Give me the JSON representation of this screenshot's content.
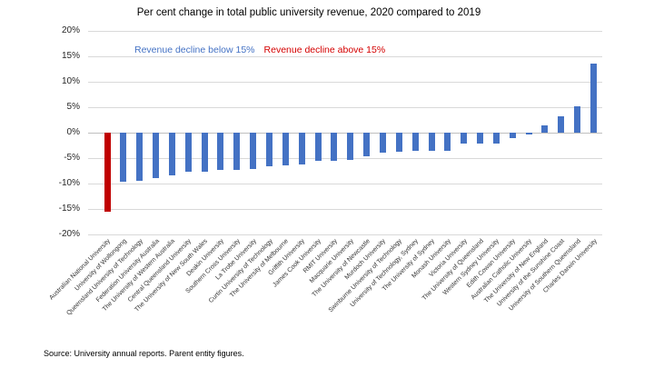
{
  "title": "Per cent change in total public university revenue, 2020 compared to 2019",
  "legend": {
    "below_label": "Revenue decline below 15%",
    "above_label": "Revenue decline above 15%"
  },
  "source": "Source: University annual reports. Parent entity figures.",
  "colors": {
    "bar_blue": "#4472C4",
    "bar_red": "#C00000",
    "legend_blue": "#4472C4",
    "legend_red": "#D40000",
    "gridline": "#D9D9D9",
    "zero_line": "#BFBFBF",
    "text": "#000000"
  },
  "chart_data": {
    "type": "bar",
    "title": "Per cent change in total public university revenue, 2020 compared to 2019",
    "xlabel": "",
    "ylabel": "",
    "ylim": [
      -20,
      20
    ],
    "yticks": [
      20,
      15,
      10,
      5,
      0,
      -5,
      -10,
      -15,
      -20
    ],
    "grid": true,
    "legend_position": "top-inside",
    "color_rule": "red if revenue decline greater than 15%, otherwise blue",
    "categories": [
      "Australian National University",
      "University of Wollongong",
      "Queensland University of Technology",
      "Federation University Australia",
      "The University of Western Australia",
      "Central Queensland University",
      "The University of New South Wales",
      "Deakin University",
      "Southern Cross University",
      "La Trobe University",
      "Curtin University of Technology",
      "The University of Melbourne",
      "Griffith University",
      "James Cook University",
      "RMIT University",
      "Macquarie University",
      "The University of Newcastle",
      "Murdoch University",
      "Swinburne University of Technology",
      "University of Technology, Sydney",
      "The University of Sydney",
      "Monash University",
      "Victoria University",
      "The University of Queensland",
      "Western Sydney University",
      "Edith Cowan University",
      "Australian Catholic University",
      "The University of New England",
      "University of the Sunshine Coast",
      "University of Southern Queensland",
      "Charles Darwin University"
    ],
    "values": [
      -15.6,
      -9.7,
      -9.4,
      -9.0,
      -8.4,
      -7.7,
      -7.6,
      -7.4,
      -7.3,
      -7.2,
      -6.6,
      -6.4,
      -6.2,
      -5.6,
      -5.5,
      -5.3,
      -4.6,
      -4.0,
      -3.7,
      -3.6,
      -3.5,
      -3.5,
      -2.2,
      -2.1,
      -2.1,
      -1.1,
      -0.3,
      1.5,
      3.3,
      5.1,
      13.6
    ]
  }
}
